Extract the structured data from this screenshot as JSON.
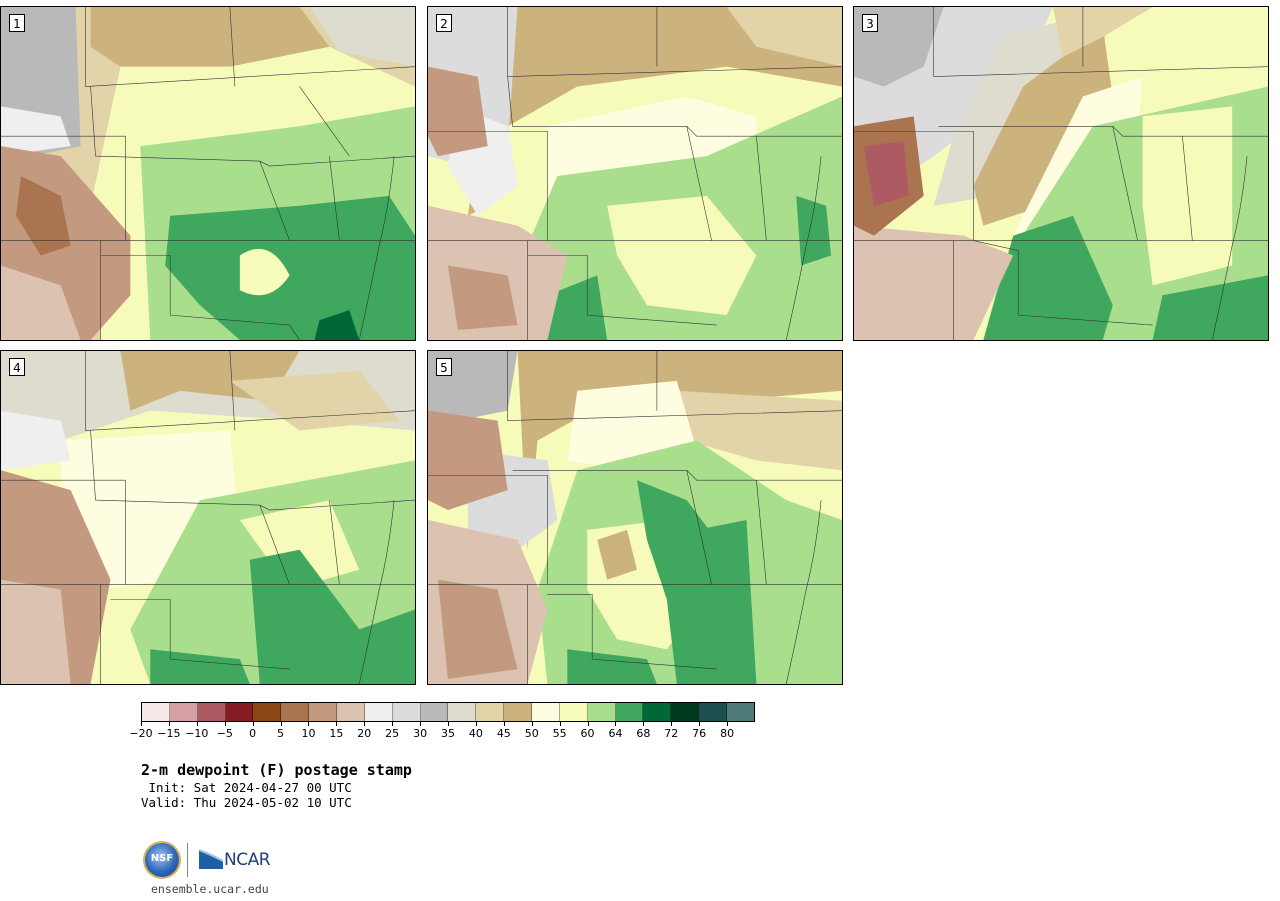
{
  "panels": [
    {
      "label": "1",
      "variant": 0
    },
    {
      "label": "2",
      "variant": 1
    },
    {
      "label": "3",
      "variant": 2
    },
    {
      "label": "4",
      "variant": 3
    },
    {
      "label": "5",
      "variant": 4
    }
  ],
  "colorbar": {
    "colors": [
      "#f7e9ea",
      "#d4a0a6",
      "#ad5a62",
      "#871b24",
      "#8a4713",
      "#ab7451",
      "#c39a80",
      "#dcc2b0",
      "#efefef",
      "#dcdcdc",
      "#b9b9b9",
      "#dddcce",
      "#e2d3a8",
      "#ccb27c",
      "#fffde0",
      "#f7fbba",
      "#a8de8c",
      "#40a85e",
      "#006838",
      "#003a1e",
      "#1c4f4e",
      "#4f7a7a"
    ],
    "tick_labels": [
      "−20",
      "−15",
      "−10",
      "−5",
      "0",
      "5",
      "10",
      "15",
      "20",
      "25",
      "30",
      "35",
      "40",
      "45",
      "50",
      "55",
      "60",
      "64",
      "68",
      "72",
      "76",
      "80"
    ]
  },
  "title": "2-m dewpoint (F) postage stamp",
  "init_line": " Init: Sat 2024-04-27 00 UTC",
  "valid_line": "Valid: Thu 2024-05-02 10 UTC",
  "logos": {
    "nsf": "NSF",
    "ncar": "NCAR"
  },
  "site": "ensemble.ucar.edu"
}
